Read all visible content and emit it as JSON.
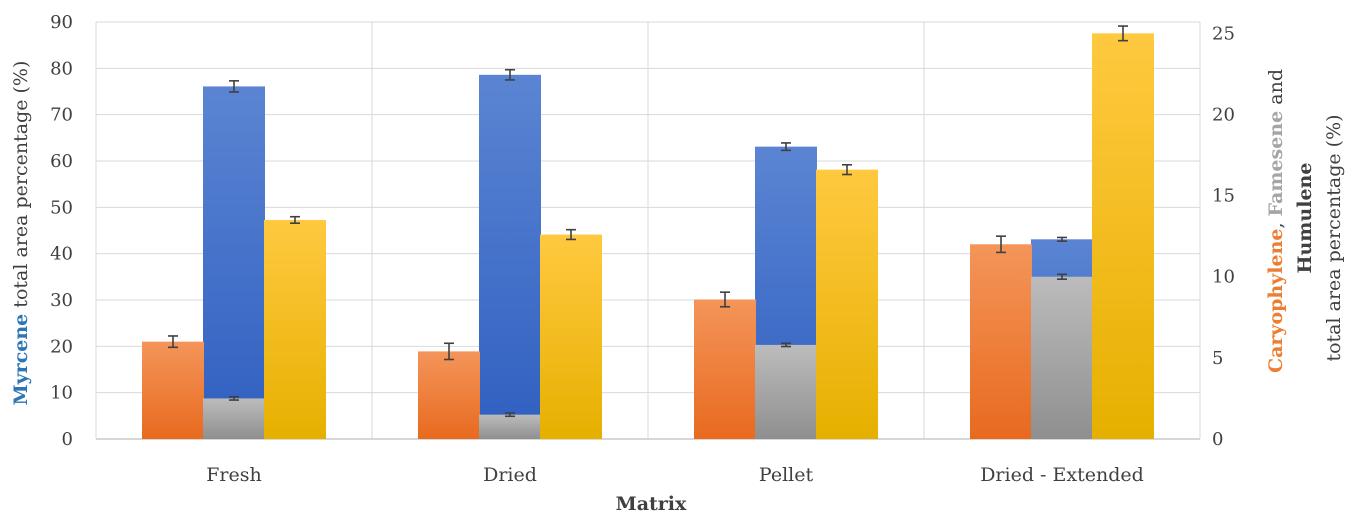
{
  "chart_data": {
    "type": "bar",
    "xlabel": "Matrix",
    "categories": [
      "Fresh",
      "Dried",
      "Pellet",
      "Dried - Extended"
    ],
    "y_left": {
      "label_bold": "Myrcene",
      "label_rest": " total area percentage (%)",
      "ylim": [
        0,
        90
      ],
      "ticks": [
        0,
        10,
        20,
        30,
        40,
        50,
        60,
        70,
        80,
        90
      ]
    },
    "y_right": {
      "label_line1_a": "Caryophylene",
      "label_line1_b": ", ",
      "label_line1_c": "Famesene",
      "label_line1_d": " and ",
      "label_line2": "Humulene",
      "label_line3": "total area percentage (%)",
      "ylim": [
        0,
        25.7
      ],
      "ticks": [
        0,
        5,
        10,
        15,
        20,
        25
      ]
    },
    "series": [
      {
        "name": "Myrcene",
        "axis": "left",
        "color": "#4472c4",
        "values": [
          76.1,
          78.6,
          63.1,
          43.1
        ],
        "errors": [
          1.2,
          1.1,
          0.8,
          0.4
        ]
      },
      {
        "name": "Caryophylene",
        "axis": "right",
        "color": "#ed7d31",
        "values": [
          6.0,
          5.4,
          8.6,
          12.0
        ],
        "errors": [
          0.35,
          0.5,
          0.45,
          0.5
        ]
      },
      {
        "name": "Famesene",
        "axis": "right",
        "color": "#a5a5a5",
        "values": [
          2.5,
          1.5,
          5.8,
          10.0
        ],
        "errors": [
          0.1,
          0.1,
          0.1,
          0.15
        ]
      },
      {
        "name": "Humulene",
        "axis": "right",
        "color": "#ffc000",
        "values": [
          13.5,
          12.6,
          16.6,
          25.0
        ],
        "errors": [
          0.2,
          0.3,
          0.3,
          0.45
        ]
      }
    ],
    "draw_order": [
      "Myrcene",
      "Caryophylene",
      "Famesene",
      "Humulene"
    ],
    "grid": true,
    "legend": "none"
  }
}
